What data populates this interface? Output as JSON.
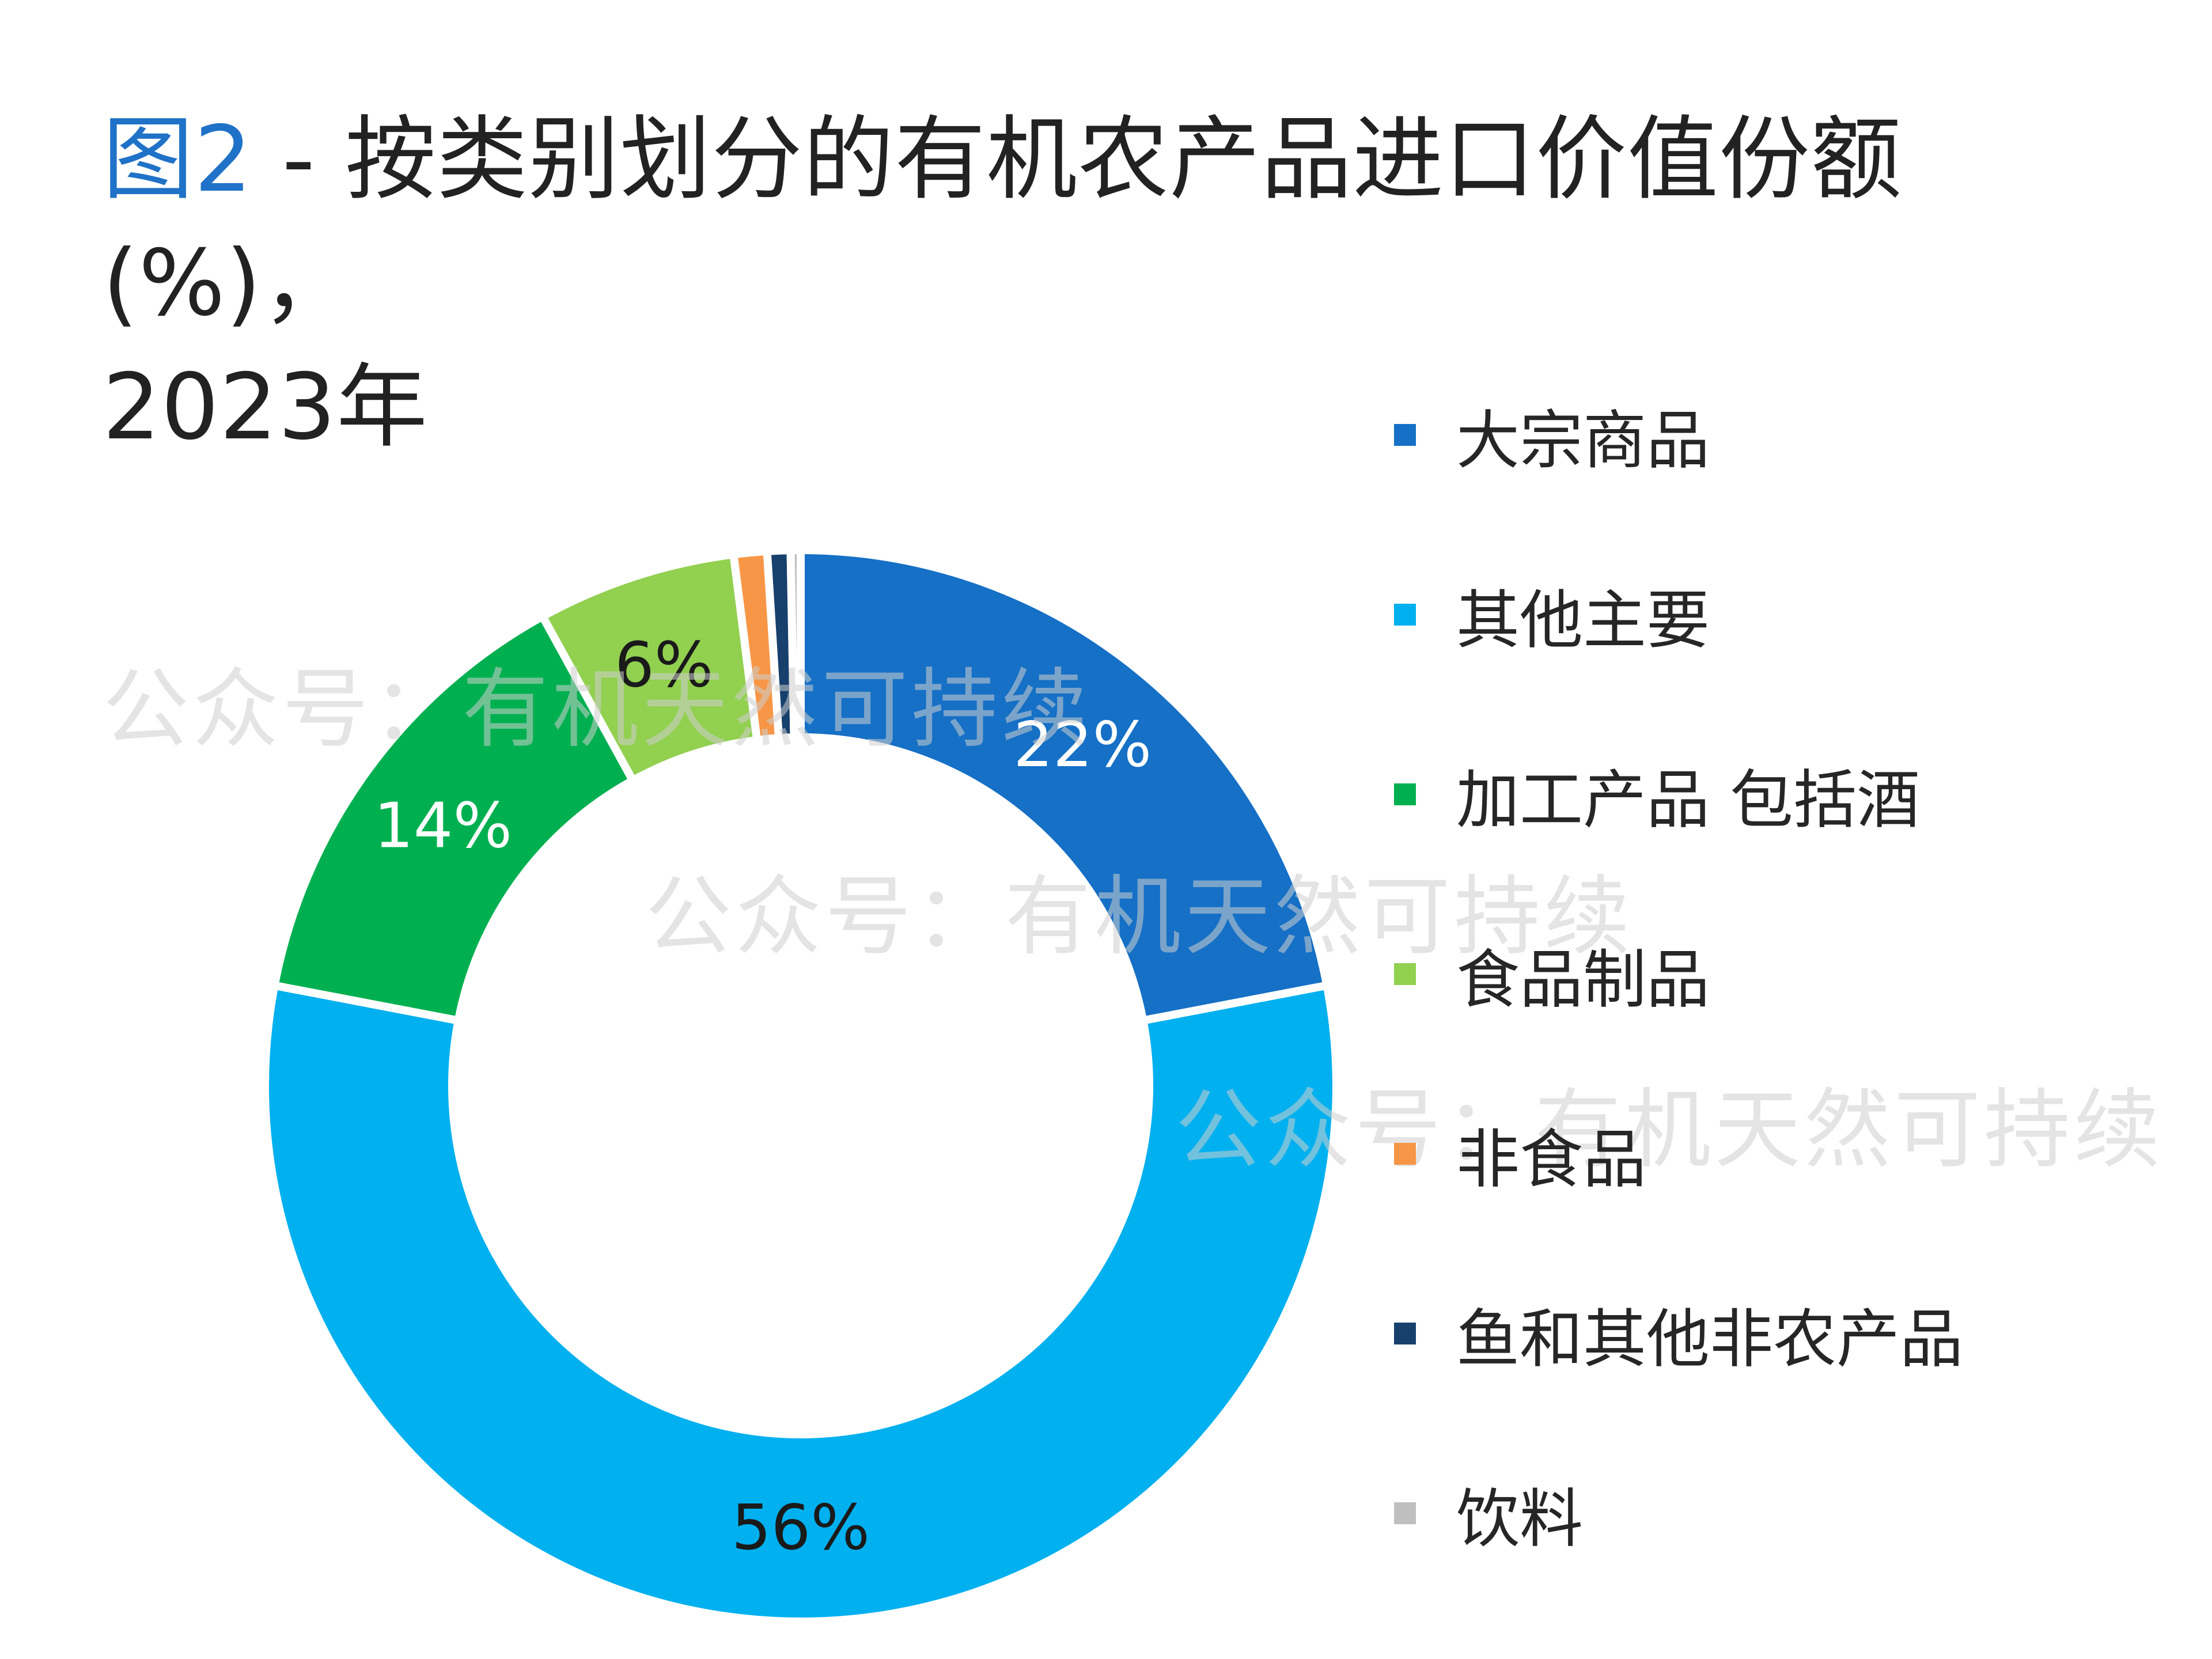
{
  "title": {
    "prefix": "图2",
    "line1": " - 按类别划分的有机农产品进口价值份额(%)，",
    "line2": "2023年"
  },
  "watermark": "公众号：有机天然可持续",
  "chart_data": {
    "type": "pie",
    "style": "donut",
    "categories": [
      "大宗商品",
      "其他主要",
      "加工产品 包括酒",
      "食品制品",
      "非食品",
      "鱼和其他非农产品",
      "饮料"
    ],
    "values": [
      22,
      56,
      14,
      6,
      1,
      0.7,
      0.3
    ],
    "data_labels": [
      "22%",
      "56%",
      "14%",
      "6%",
      "",
      "",
      ""
    ],
    "colors": [
      "#1570c6",
      "#00b0ef",
      "#00b050",
      "#92d050",
      "#f79646",
      "#17406d",
      "#bfbfbf"
    ],
    "label_colors": [
      "#ffffff",
      "#1a1a1a",
      "#ffffff",
      "#1a1a1a",
      "#1a1a1a",
      "#1a1a1a",
      "#1a1a1a"
    ],
    "legend_position": "right",
    "start_angle_deg": 0,
    "direction": "clockwise"
  }
}
